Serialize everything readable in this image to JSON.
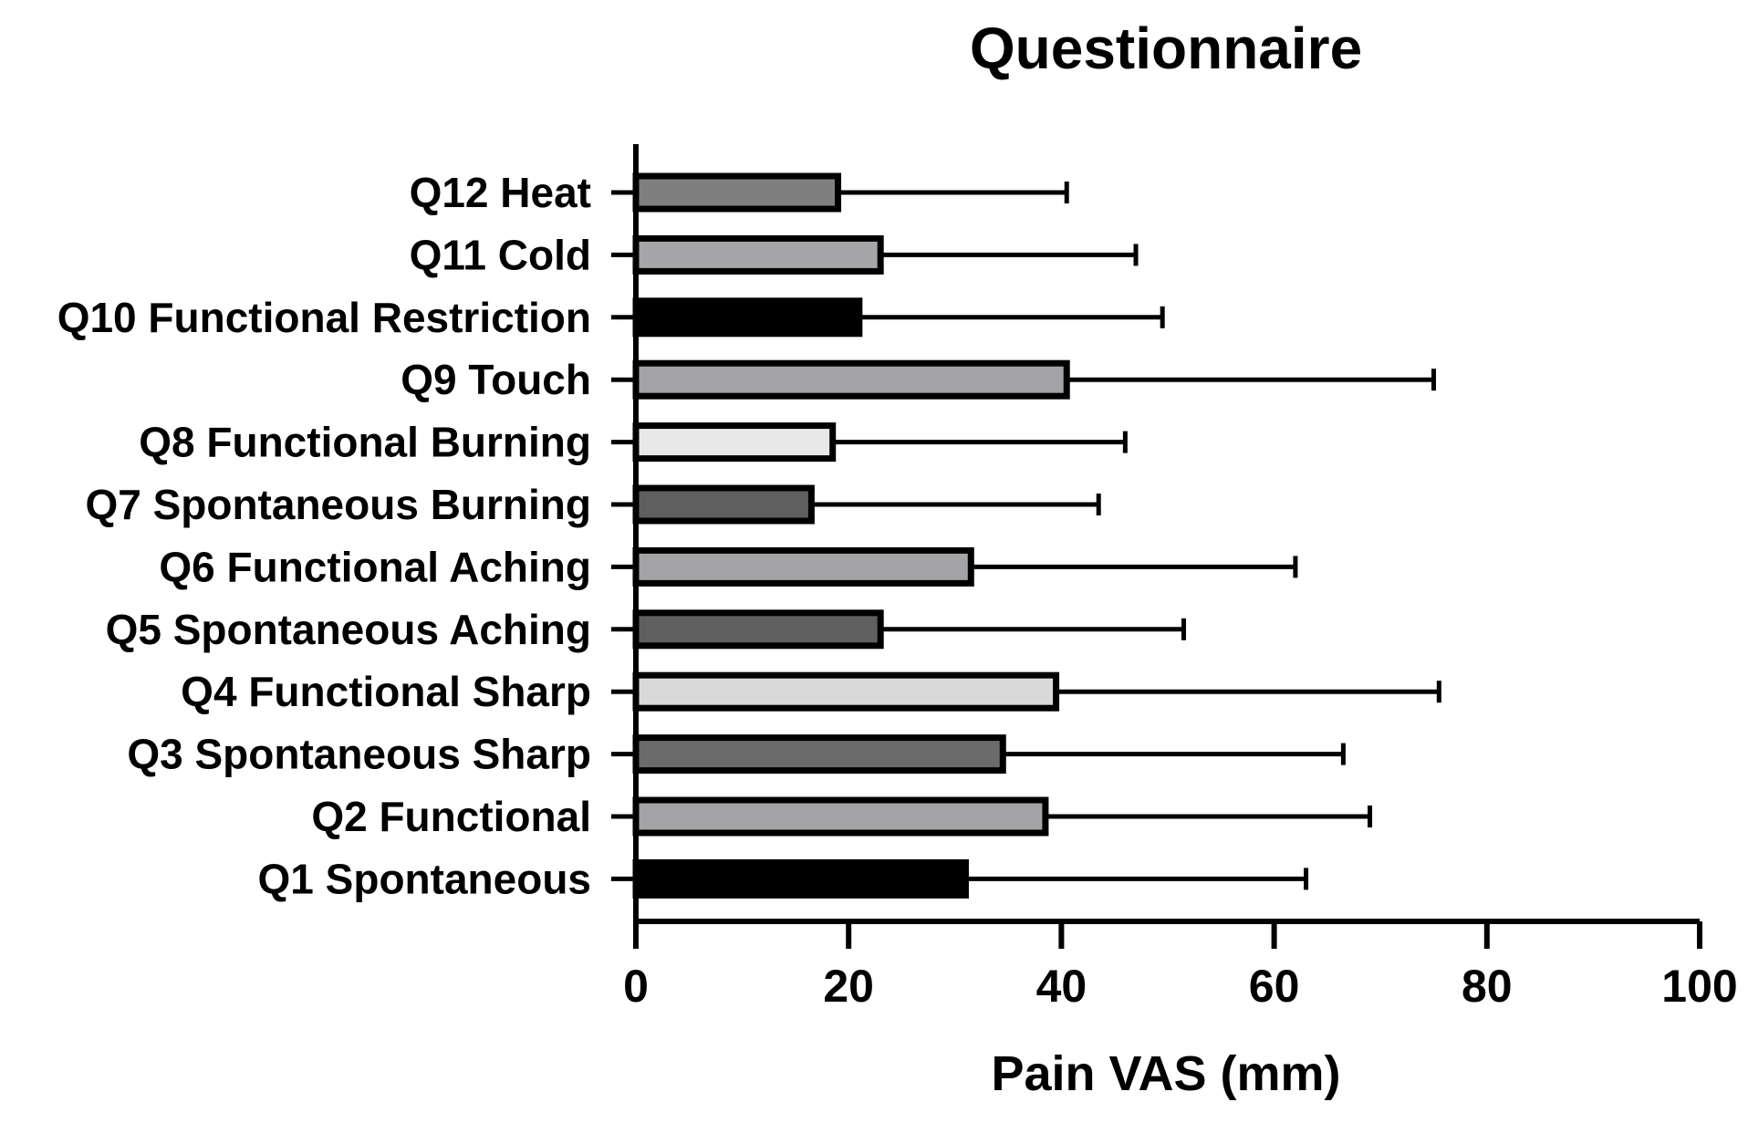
{
  "chart_data": {
    "type": "bar",
    "orientation": "horizontal",
    "title": "Questionnaire",
    "xlabel": "Pain VAS (mm)",
    "ylabel": "",
    "xlim": [
      0,
      100
    ],
    "xticks": [
      "0",
      "20",
      "40",
      "60",
      "80",
      "100"
    ],
    "grid": false,
    "error_bars": "upper",
    "categories": [
      "Q12 Heat",
      "Q11 Cold",
      "Q10 Functional Restriction",
      "Q9 Touch",
      "Q8 Functional Burning",
      "Q7 Spontaneous Burning",
      "Q6 Functional Aching",
      "Q5 Spontaneous Aching",
      "Q4 Functional Sharp",
      "Q3 Spontaneous Sharp",
      "Q2 Functional",
      "Q1 Spontaneous"
    ],
    "values": [
      19,
      23,
      21,
      40.5,
      18.5,
      16.5,
      31.5,
      23,
      39.5,
      34.5,
      38.5,
      31
    ],
    "error": [
      21.5,
      24,
      28.5,
      34.5,
      27.5,
      27,
      30.5,
      28.5,
      36,
      32,
      30.5,
      32
    ],
    "bar_colors": [
      "#7f7f7f",
      "#a6a6a8",
      "#000000",
      "#a3a3a5",
      "#e8e8e8",
      "#5f5f5f",
      "#a3a3a5",
      "#5f5f5f",
      "#d9d9d9",
      "#6b6b6b",
      "#a3a3a5",
      "#000000"
    ]
  }
}
